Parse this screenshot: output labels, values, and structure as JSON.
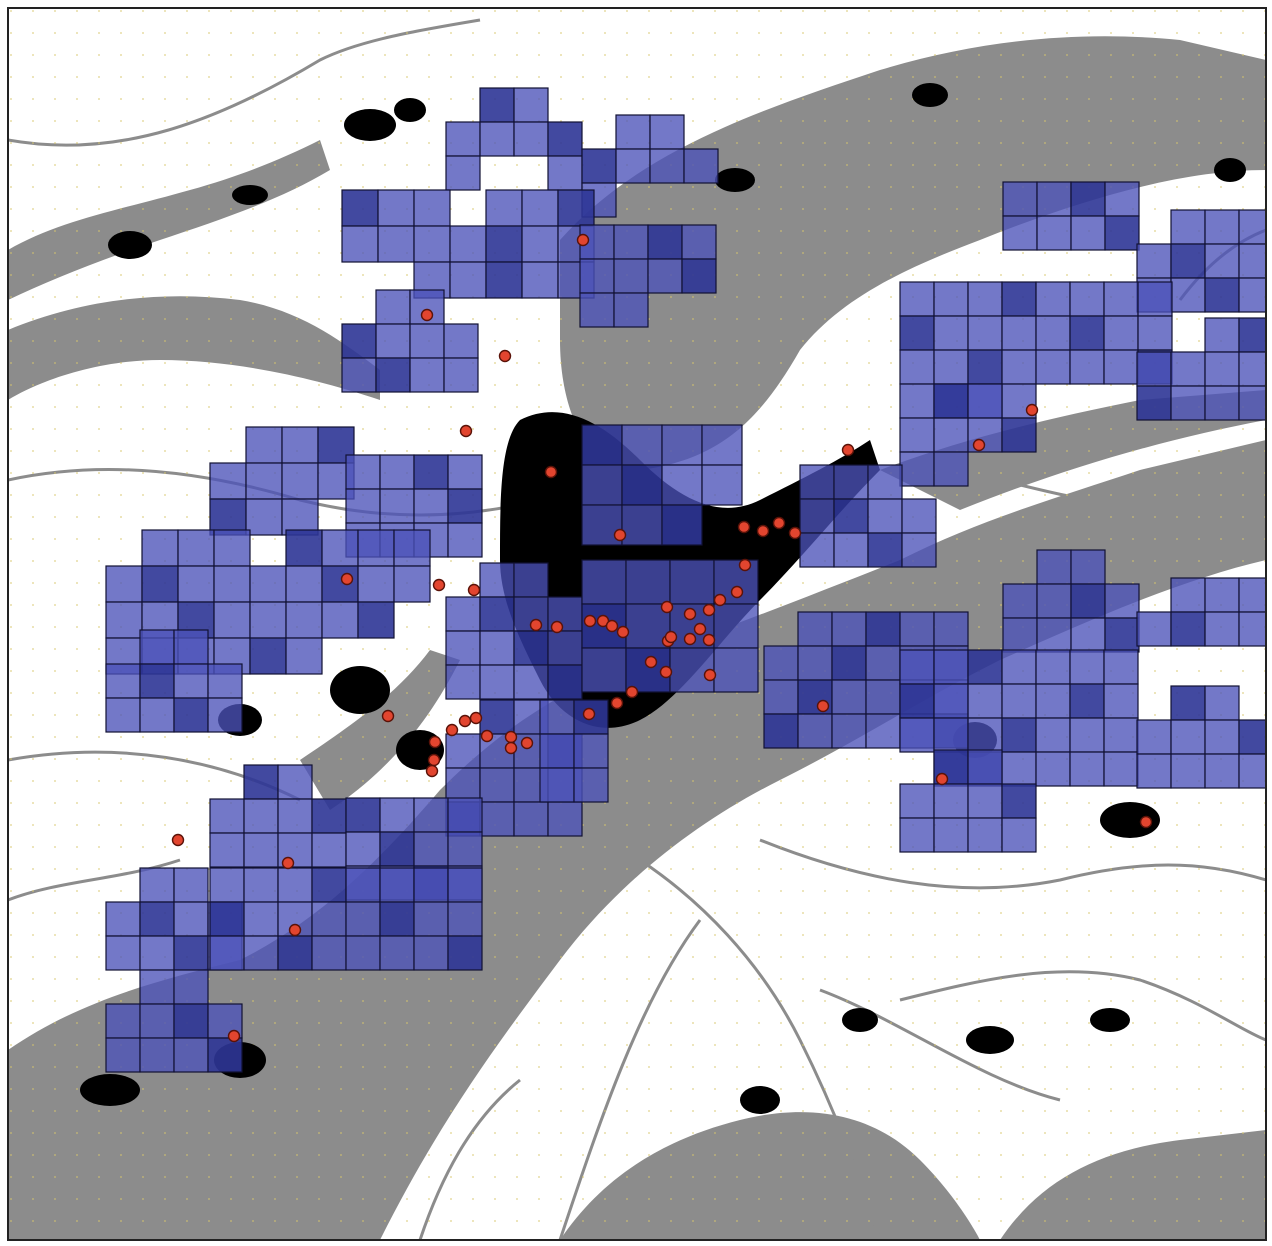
{
  "map": {
    "colors": {
      "background": "#ffffff",
      "terrain": "#8c8c8c",
      "settlement": "#000000",
      "cell_fill": "#4b52b8",
      "cell_fill_dark": "#2e3596",
      "cell_stroke": "#111133",
      "point_fill": "#e2452f",
      "point_stroke": "#5a1208",
      "frame": "#222222"
    },
    "legend": null
  }
}
